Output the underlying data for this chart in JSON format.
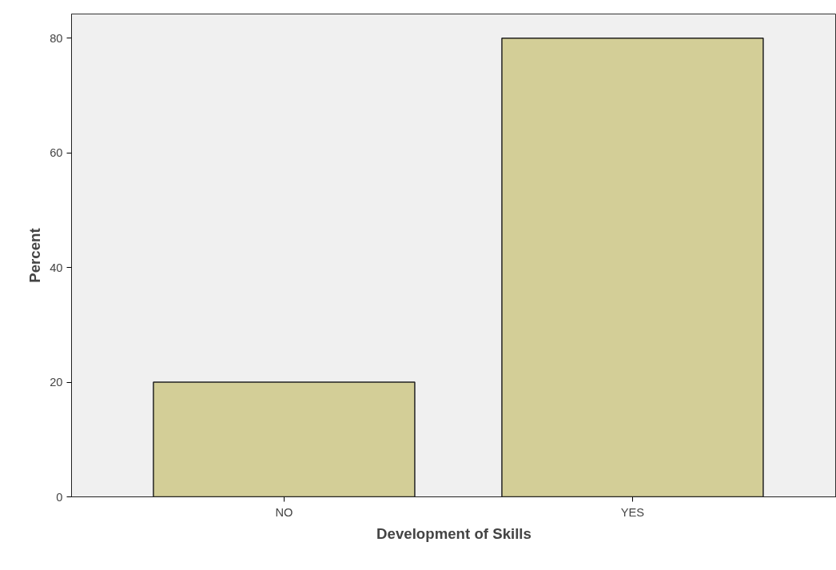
{
  "chart_data": {
    "type": "bar",
    "xlabel": "Development of Skills",
    "ylabel": "Percent",
    "categories": [
      "NO",
      "YES"
    ],
    "values": [
      20,
      80
    ],
    "color": "#d3ce97",
    "ylim": [
      0,
      84.2
    ],
    "yticks": [
      0,
      20,
      40,
      60,
      80
    ],
    "grid": false
  }
}
